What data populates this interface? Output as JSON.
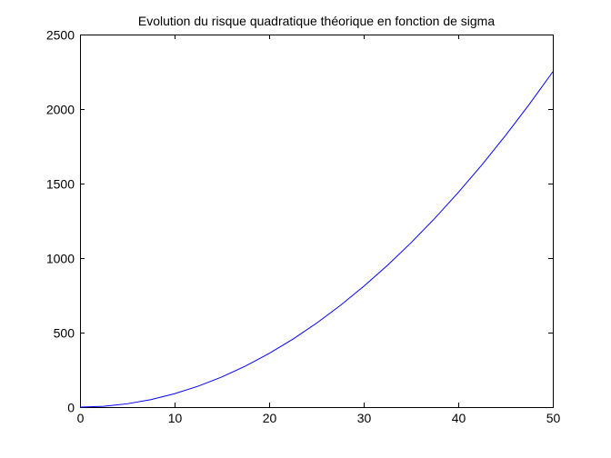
{
  "chart_data": {
    "type": "line",
    "title": "Evolution du risque quadratique théorique en fonction de sigma",
    "xlabel": "",
    "ylabel": "",
    "xlim": [
      0,
      50
    ],
    "ylim": [
      0,
      2500
    ],
    "x_ticks": [
      0,
      10,
      20,
      30,
      40,
      50
    ],
    "y_ticks": [
      0,
      500,
      1000,
      1500,
      2000,
      2500
    ],
    "grid": false,
    "legend": "none",
    "series": [
      {
        "color": "#0000ff",
        "x": [
          0,
          2.5,
          5,
          7.5,
          10,
          12.5,
          15,
          17.5,
          20,
          22.5,
          25,
          27.5,
          30,
          32.5,
          35,
          37.5,
          40,
          42.5,
          45,
          47.5,
          50
        ],
        "y": [
          0,
          5.6,
          22.5,
          50.6,
          90,
          140.6,
          202.5,
          275.6,
          360,
          455.6,
          562.5,
          680.6,
          810,
          950.6,
          1102.5,
          1265.6,
          1440,
          1625.6,
          1822.5,
          2030.6,
          2250
        ]
      }
    ]
  }
}
